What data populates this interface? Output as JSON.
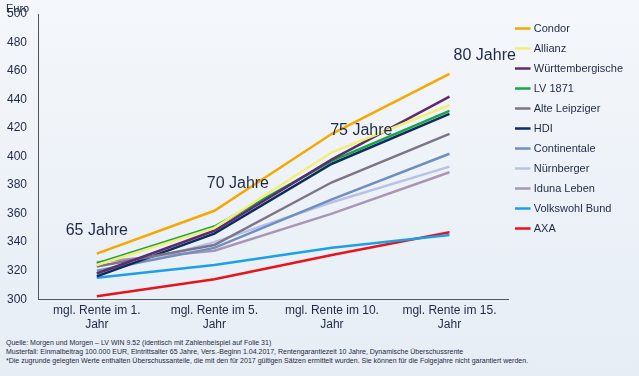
{
  "chart_data": {
    "type": "line",
    "ylabel": "Euro",
    "categories": [
      "mgl. Rente im 1. Jahr",
      "mgl. Rente im 5. Jahr",
      "mgl. Rente im 10. Jahr",
      "mgl. Rente im 15. Jahr"
    ],
    "series": [
      {
        "name": "Condor",
        "color": "#f5a800",
        "values": [
          332,
          362,
          416,
          458
        ]
      },
      {
        "name": "Allianz",
        "color": "#f2ee78",
        "values": [
          324,
          350,
          403,
          436
        ]
      },
      {
        "name": "Württembergische",
        "color": "#5b2d6e",
        "values": [
          318,
          348,
          398,
          442
        ]
      },
      {
        "name": "LV 1871",
        "color": "#1aa34a",
        "values": [
          325,
          351,
          397,
          432
        ]
      },
      {
        "name": "Alte Leipziger",
        "color": "#7e7487",
        "values": [
          323,
          338,
          382,
          416
        ]
      },
      {
        "name": "HDI",
        "color": "#0d2e5c",
        "values": [
          316,
          346,
          395,
          430
        ]
      },
      {
        "name": "Continentale",
        "color": "#6e8fc0",
        "values": [
          320,
          336,
          370,
          402
        ]
      },
      {
        "name": "Nürnberger",
        "color": "#b7c3e6",
        "values": [
          318,
          340,
          368,
          393
        ]
      },
      {
        "name": "Iduna Leben",
        "color": "#a896b4",
        "values": [
          326,
          334,
          360,
          389
        ]
      },
      {
        "name": "Volkswohl Bund",
        "color": "#1ea0e6",
        "values": [
          315,
          324,
          336,
          345
        ]
      },
      {
        "name": "AXA",
        "color": "#e8141c",
        "values": [
          302,
          314,
          331,
          347
        ]
      }
    ],
    "ylim": [
      300,
      500
    ],
    "yticks": [
      300,
      320,
      340,
      360,
      380,
      400,
      420,
      440,
      460,
      480,
      500
    ],
    "grid": false,
    "legend": "right",
    "annotations": [
      {
        "text": "65 Jahre",
        "x": 0,
        "y": 348
      },
      {
        "text": "70 Jahre",
        "x": 1.2,
        "y": 381
      },
      {
        "text": "75 Jahre",
        "x": 2.25,
        "y": 418
      },
      {
        "text": "80 Jahre",
        "x": 3.3,
        "y": 471
      }
    ],
    "footnotes": [
      "Quelle: Morgen und Morgen – LV WIN 9.52 (identisch mit Zahlenbeispiel auf Folie 31)",
      "Musterfall: Einmalbeitrag 100.000 EUR, Eintrittsalter 65 Jahre, Vers.-Beginn 1.04.2017, Rentengarantiezeit 10 Jahre, Dynamische Überschussrente",
      "*Die zugrunde gelegten Werte enthalten Überschussanteile, die mit den für 2017 gültigen Sätzen ermittelt wurden. Sie können für die Folgejahre nicht garantiert werden."
    ]
  }
}
